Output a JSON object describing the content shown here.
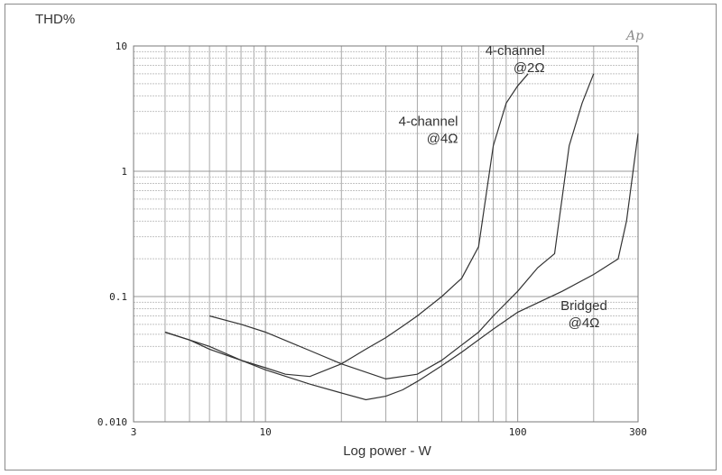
{
  "chart_data": {
    "type": "line",
    "title": "",
    "ylabel": "THD%",
    "xlabel": "Log power - W",
    "x_scale": "log",
    "y_scale": "log",
    "xlim": [
      3,
      300
    ],
    "ylim": [
      0.01,
      10
    ],
    "x_ticks": [
      {
        "value": 3,
        "label": "3"
      },
      {
        "value": 10,
        "label": "10"
      },
      {
        "value": 100,
        "label": "100"
      },
      {
        "value": 300,
        "label": "300"
      }
    ],
    "y_ticks": [
      {
        "value": 10,
        "label": "10"
      },
      {
        "value": 1,
        "label": "1"
      },
      {
        "value": 0.1,
        "label": "0.1"
      },
      {
        "value": 0.01,
        "label": "0.010"
      }
    ],
    "grid": true,
    "logo_text": "Ap",
    "annotations": [
      {
        "lines": [
          "4-channel",
          "@2Ω"
        ],
        "x": 128,
        "y": 8.5,
        "anchor": "end"
      },
      {
        "lines": [
          "4-channel",
          "@4Ω"
        ],
        "x": 58,
        "y": 2.3,
        "anchor": "end"
      },
      {
        "lines": [
          "Bridged",
          "@4Ω"
        ],
        "x": 183,
        "y": 0.078,
        "anchor": "middle"
      }
    ],
    "series": [
      {
        "x": [
          4,
          5,
          6,
          7,
          8,
          10,
          12,
          15,
          20,
          25,
          30,
          35,
          40,
          50,
          60,
          70,
          80,
          90,
          100,
          110
        ],
        "y": [
          0.052,
          0.045,
          0.038,
          0.034,
          0.031,
          0.027,
          0.024,
          0.023,
          0.029,
          0.038,
          0.047,
          0.058,
          0.07,
          0.1,
          0.14,
          0.25,
          1.6,
          3.5,
          4.8,
          6
        ]
      },
      {
        "x": [
          6,
          8,
          10,
          15,
          20,
          30,
          40,
          50,
          60,
          70,
          80,
          100,
          120,
          140,
          160,
          180,
          200
        ],
        "y": [
          0.07,
          0.06,
          0.052,
          0.037,
          0.029,
          0.022,
          0.024,
          0.031,
          0.041,
          0.052,
          0.07,
          0.11,
          0.17,
          0.22,
          1.6,
          3.5,
          6
        ]
      },
      {
        "x": [
          4,
          6,
          8,
          10,
          15,
          20,
          25,
          30,
          35,
          40,
          50,
          60,
          80,
          100,
          150,
          200,
          250,
          270,
          290,
          300
        ],
        "y": [
          0.052,
          0.04,
          0.031,
          0.026,
          0.02,
          0.017,
          0.015,
          0.016,
          0.018,
          0.021,
          0.028,
          0.036,
          0.055,
          0.075,
          0.11,
          0.15,
          0.2,
          0.4,
          1.2,
          2
        ]
      }
    ]
  }
}
